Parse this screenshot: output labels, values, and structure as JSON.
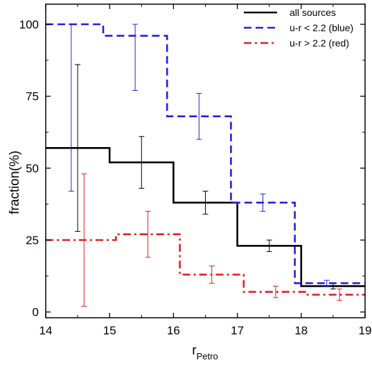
{
  "chart_data": {
    "type": "line",
    "step": true,
    "title": "",
    "xlabel": "r",
    "xlabel_subscript": "Petro",
    "ylabel": "fraction(%)",
    "xlim": [
      14,
      19
    ],
    "ylim": [
      -2,
      107
    ],
    "xticks": [
      14,
      15,
      16,
      17,
      18,
      19
    ],
    "yticks": [
      0,
      25,
      50,
      75,
      100
    ],
    "grid": false,
    "legend_position": "top-right",
    "series": [
      {
        "name": "all sources",
        "color": "#000000",
        "dash": "solid",
        "edges": [
          14,
          15,
          16,
          17,
          18,
          19
        ],
        "values": [
          57,
          52,
          38,
          23,
          9
        ],
        "errorbars": [
          {
            "x": 14.5,
            "y": 57,
            "lo": 28,
            "hi": 86
          },
          {
            "x": 15.5,
            "y": 52,
            "lo": 43,
            "hi": 61
          },
          {
            "x": 16.5,
            "y": 38,
            "lo": 34,
            "hi": 42
          },
          {
            "x": 17.5,
            "y": 23,
            "lo": 21,
            "hi": 25
          },
          {
            "x": 18.5,
            "y": 9,
            "lo": 8,
            "hi": 10
          }
        ]
      },
      {
        "name": "u-r < 2.2 (blue)",
        "color": "#1f1fe0",
        "dash": "dashed",
        "edges": [
          14,
          14.9,
          15.9,
          16.9,
          17.9,
          19
        ],
        "values": [
          100,
          96,
          68,
          38,
          10
        ],
        "errorbars": [
          {
            "x": 14.4,
            "y": 100,
            "lo": 42,
            "hi": 100
          },
          {
            "x": 15.4,
            "y": 96,
            "lo": 77,
            "hi": 100
          },
          {
            "x": 16.4,
            "y": 68,
            "lo": 60,
            "hi": 76
          },
          {
            "x": 17.4,
            "y": 38,
            "lo": 35,
            "hi": 41
          },
          {
            "x": 18.4,
            "y": 10,
            "lo": 9,
            "hi": 11
          }
        ]
      },
      {
        "name": "u-r > 2.2 (red)",
        "color": "#e01f1f",
        "dash": "dashdot",
        "edges": [
          14,
          15.1,
          16.1,
          17.1,
          18.1,
          19
        ],
        "values": [
          25,
          27,
          13,
          7,
          6
        ],
        "errorbars": [
          {
            "x": 14.6,
            "y": 25,
            "lo": 2,
            "hi": 48
          },
          {
            "x": 15.6,
            "y": 27,
            "lo": 19,
            "hi": 35
          },
          {
            "x": 16.6,
            "y": 13,
            "lo": 10,
            "hi": 16
          },
          {
            "x": 17.6,
            "y": 7,
            "lo": 5,
            "hi": 9
          },
          {
            "x": 18.6,
            "y": 6,
            "lo": 4,
            "hi": 8
          }
        ]
      }
    ]
  }
}
